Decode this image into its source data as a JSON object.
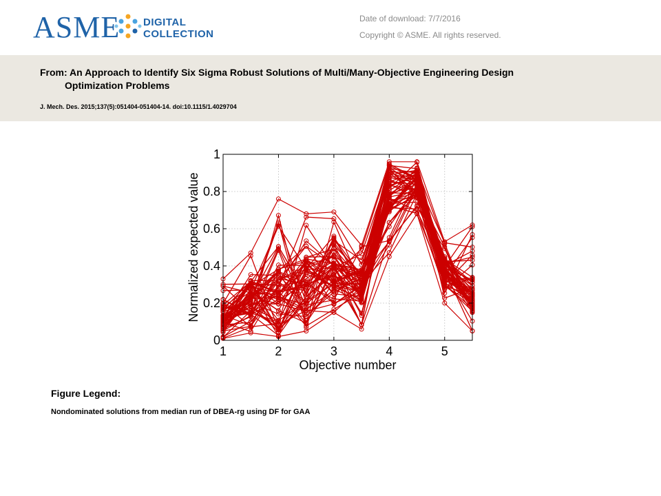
{
  "header": {
    "logo_text": "ASME",
    "logo_sub1": "DIGITAL",
    "logo_sub2": "COLLECTION",
    "download_date": "Date of download:  7/7/2016",
    "copyright": "Copyright © ASME. All rights reserved."
  },
  "article": {
    "title_line1": "From: An Approach to Identify Six Sigma Robust Solutions of Multi/Many-Objective Engineering Design",
    "title_line2": "Optimization  Problems",
    "citation": "J. Mech. Des. 2015;137(5):051404-051404-14. doi:10.1115/1.4029704"
  },
  "figure_legend": {
    "heading": "Figure Legend:",
    "text": "Nondominated solutions from median run of DBEA-rg using DF for GAA"
  },
  "colors": {
    "series": "#cc0000",
    "brand": "#1f63a8",
    "band": "#ebe8e1"
  },
  "chart_data": {
    "type": "line",
    "xlabel": "Objective number",
    "ylabel": "Normalized expected value",
    "x": [
      1,
      1.5,
      2,
      2.5,
      3,
      3.5,
      4,
      4.5,
      5,
      5.5
    ],
    "x_ticks": [
      "1",
      "2",
      "3",
      "4",
      "5"
    ],
    "y_ticks": [
      "0",
      "0.2",
      "0.4",
      "0.6",
      "0.8",
      "1"
    ],
    "xlim": [
      1,
      5.5
    ],
    "ylim": [
      0,
      1
    ],
    "grid": true,
    "marker": "circle",
    "series_count": 60,
    "value_bands": {
      "min": [
        0.01,
        0.04,
        0.02,
        0.05,
        0.15,
        0.06,
        0.45,
        0.68,
        0.2,
        0.05
      ],
      "typical_low": [
        0.05,
        0.12,
        0.08,
        0.15,
        0.25,
        0.2,
        0.7,
        0.76,
        0.28,
        0.15
      ],
      "typical_high": [
        0.2,
        0.32,
        0.4,
        0.45,
        0.6,
        0.38,
        0.92,
        0.93,
        0.45,
        0.35
      ],
      "max": [
        0.33,
        0.47,
        0.76,
        0.68,
        0.69,
        0.51,
        0.96,
        0.96,
        0.53,
        0.62
      ]
    }
  }
}
